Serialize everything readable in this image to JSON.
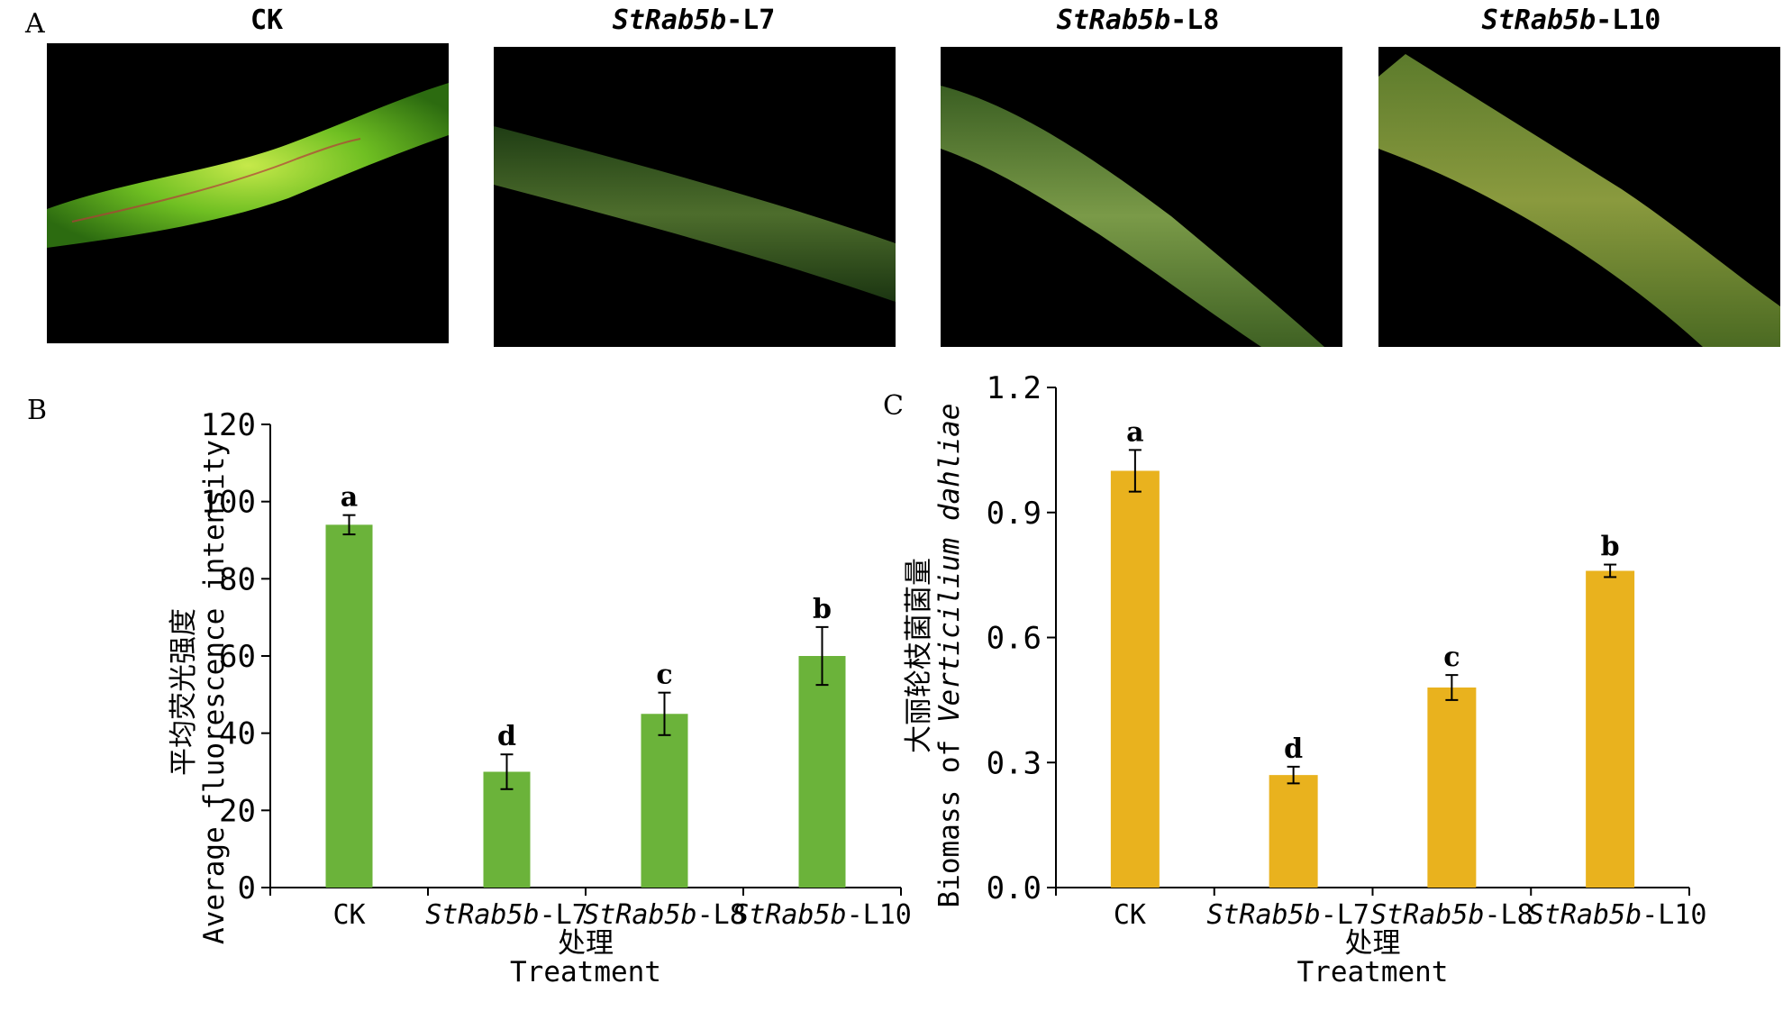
{
  "panel_a": {
    "letter": "A",
    "images": [
      {
        "title_italic": "",
        "title_plain": "CK",
        "description": "green fluorescent stem, bright"
      },
      {
        "title_italic": "StRab5b",
        "title_plain": "-L7",
        "description": "green fluorescent stem, dim"
      },
      {
        "title_italic": "StRab5b",
        "title_plain": "-L8",
        "description": "green fluorescent stem"
      },
      {
        "title_italic": "StRab5b",
        "title_plain": "-L10",
        "description": "green fluorescent stem, medium"
      }
    ]
  },
  "colors": {
    "panel_b_bar": "#6bb33a",
    "panel_c_bar": "#e9b21e",
    "axis": "#000000",
    "image_bg": "#000000"
  },
  "chart_data": [
    {
      "panel_letter": "B",
      "type": "bar",
      "categories": [
        {
          "italic": "",
          "plain": "CK"
        },
        {
          "italic": "StRab5b",
          "plain": "-L7"
        },
        {
          "italic": "StRab5b",
          "plain": "-L8"
        },
        {
          "italic": "StRab5b",
          "plain": "-L10"
        }
      ],
      "values": [
        94,
        30,
        45,
        60
      ],
      "errors": [
        2.5,
        4.5,
        5.5,
        7.5
      ],
      "significance": [
        "a",
        "d",
        "c",
        "b"
      ],
      "ylabel_cn": "平均荧光强度",
      "ylabel_en": "Average fluorescence intensity",
      "xlabel_cn": "处理",
      "xlabel_en": "Treatment",
      "ylim": [
        0,
        120
      ],
      "yticks": [
        "0",
        "20",
        "40",
        "60",
        "80",
        "100",
        "120"
      ],
      "grid": false
    },
    {
      "panel_letter": "C",
      "type": "bar",
      "categories": [
        {
          "italic": "",
          "plain": "CK"
        },
        {
          "italic": "StRab5b",
          "plain": "-L7"
        },
        {
          "italic": "StRab5b",
          "plain": "-L8"
        },
        {
          "italic": "StRab5b",
          "plain": "-L10"
        }
      ],
      "values": [
        1.0,
        0.27,
        0.48,
        0.76
      ],
      "errors": [
        0.05,
        0.02,
        0.03,
        0.015
      ],
      "significance": [
        "a",
        "d",
        "c",
        "b"
      ],
      "ylabel_cn": "大丽轮枝菌菌量",
      "ylabel_en_plain": "Biomass of ",
      "ylabel_en_italic": "Verticilium dahliae",
      "xlabel_cn": "处理",
      "xlabel_en": "Treatment",
      "ylim": [
        0,
        1.2
      ],
      "yticks": [
        "0.0",
        "0.3",
        "0.6",
        "0.9",
        "1.2"
      ],
      "grid": false
    }
  ]
}
